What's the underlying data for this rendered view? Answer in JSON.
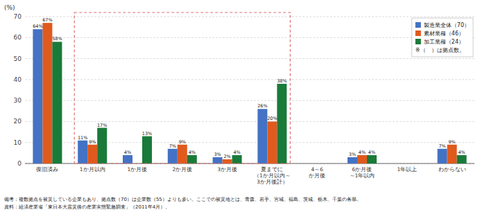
{
  "chart_data": {
    "type": "bar",
    "ylabel": "(%)",
    "categories": [
      "復旧済み",
      "1か月以内",
      "1か月後",
      "2か月後",
      "3か月後",
      "夏までに\n（1か月以内～\n3か月後計）",
      "4～6\nか月後",
      "6か月後\n～1年以内",
      "1年以上",
      "わからない"
    ],
    "series": [
      {
        "name": "製造業全体（70）",
        "color": "#4472c4",
        "values": [
          64,
          11,
          4,
          7,
          3,
          26,
          0,
          3,
          0,
          7
        ],
        "value_labels": [
          "64%",
          "11%",
          "4%",
          "7%",
          "3%",
          "26%",
          null,
          "3%",
          null,
          "7%"
        ]
      },
      {
        "name": "素材業種（46）",
        "color": "#e05a1e",
        "values": [
          67,
          9,
          0,
          9,
          2,
          20,
          0,
          4,
          0,
          9
        ],
        "value_labels": [
          "67%",
          "9%",
          null,
          "9%",
          "2%",
          "20%",
          null,
          "4%",
          null,
          "9%"
        ]
      },
      {
        "name": "加工業種（24）",
        "color": "#1a7a3a",
        "values": [
          58,
          17,
          13,
          4,
          4,
          38,
          0,
          4,
          0,
          4
        ],
        "value_labels": [
          "58%",
          "17%",
          "13%",
          "4%",
          "4%",
          "38%",
          null,
          "4%",
          null,
          "4%"
        ]
      }
    ],
    "ylim": [
      0,
      70
    ],
    "yticks": [
      0,
      10,
      20,
      30,
      40,
      50,
      60,
      70
    ],
    "grid": true,
    "legend": "upper right",
    "data_labels": true,
    "annotations": [
      {
        "text": "※（　）は拠点数。"
      },
      {
        "from": "1か月以内",
        "to": "夏までに\n（1か月以内～\n3か月後計）",
        "color": "#e07070"
      }
    ],
    "footnotes": [
      "備考：複数拠点を被災している企業もあり、拠点数（70）は企業数（55）よりも多い。ここでの被災地とは、青森、岩手、宮城、福島、茨城、栃木、千葉の各県。",
      "資料：経済産業省「東日本大震災後の産業実態緊急調査」（2011年4月）。"
    ]
  }
}
